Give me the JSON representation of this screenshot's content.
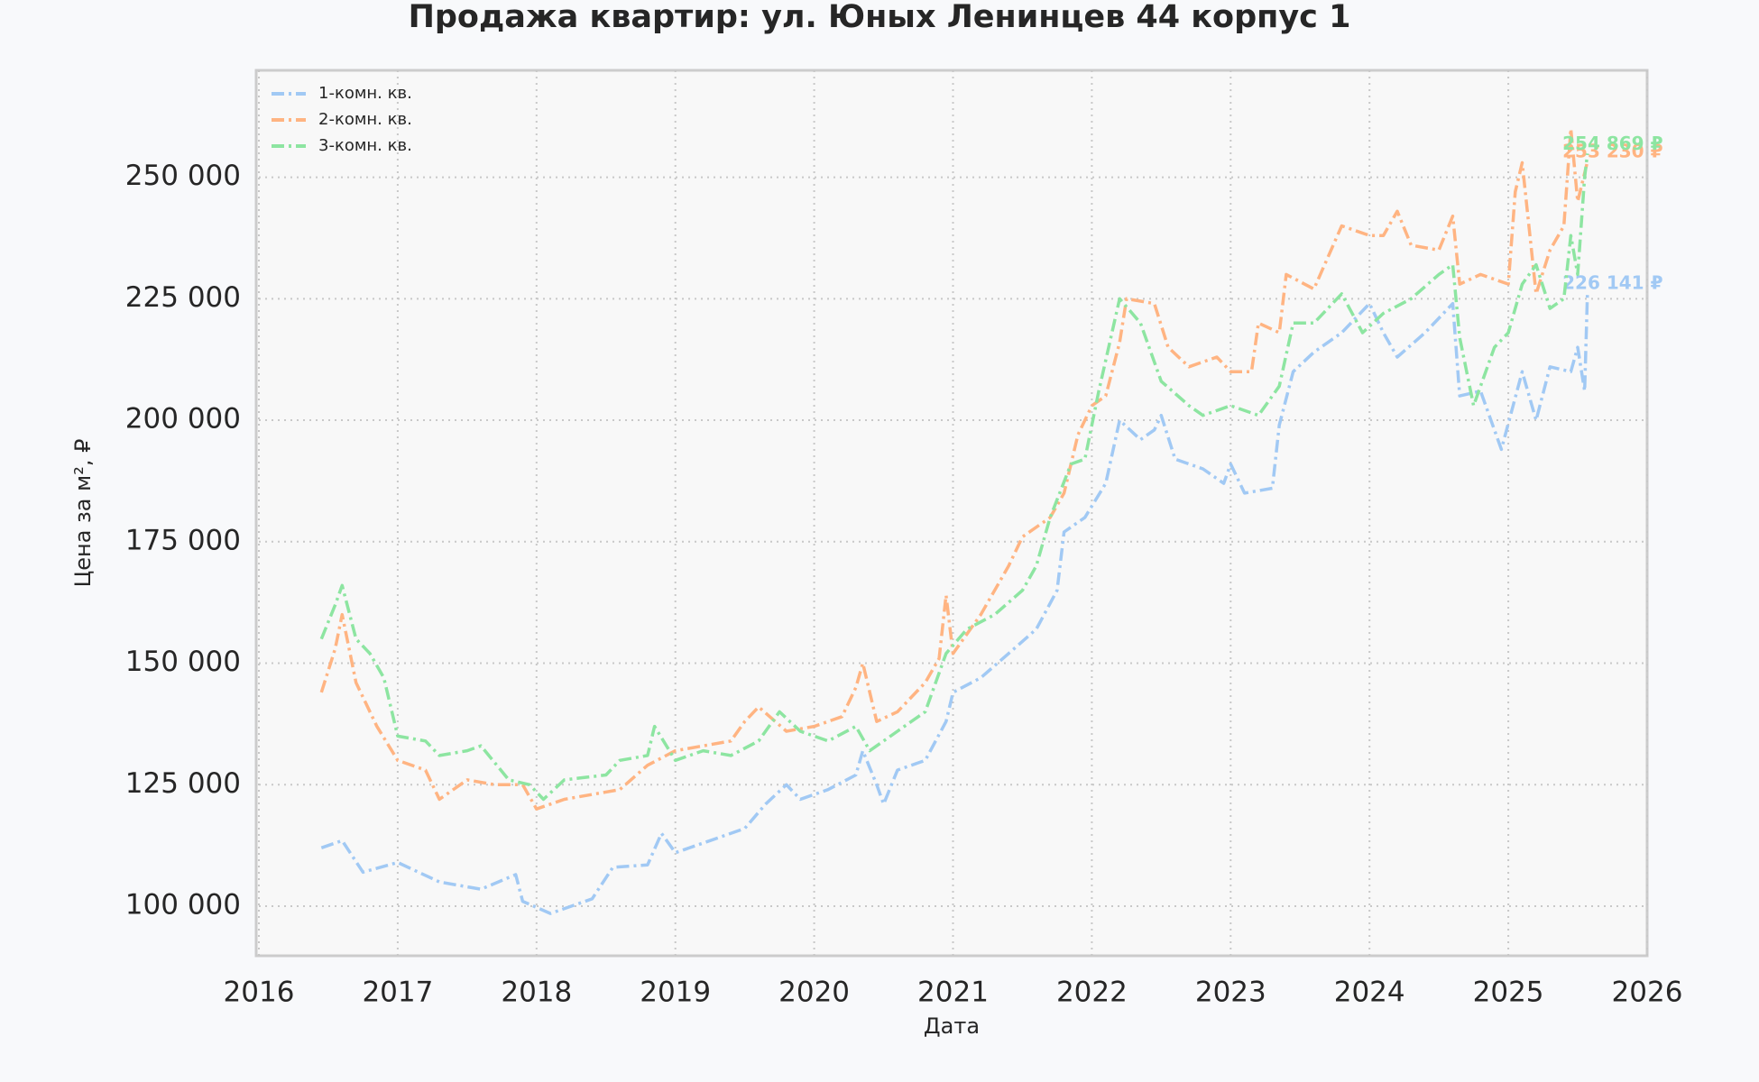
{
  "chart_data": {
    "type": "line",
    "title": "Продажа квартир: ул. Юных Ленинцев 44 корпус 1",
    "x_label": "Дата",
    "y_label": "Цена за м², ₽",
    "xlim": [
      2016,
      2026
    ],
    "xticks": [
      2016,
      2017,
      2018,
      2019,
      2020,
      2021,
      2022,
      2023,
      2024,
      2025,
      2026
    ],
    "ylim": [
      89800,
      272000
    ],
    "yticks": [
      {
        "value": 100000,
        "label": "100 000"
      },
      {
        "value": 125000,
        "label": "125 000"
      },
      {
        "value": 150000,
        "label": "150 000"
      },
      {
        "value": 175000,
        "label": "175 000"
      },
      {
        "value": 200000,
        "label": "200 000"
      },
      {
        "value": 225000,
        "label": "225 000"
      },
      {
        "value": 250000,
        "label": "250 000"
      }
    ],
    "grid": true,
    "legend": "upper left",
    "series": [
      {
        "name": "1-комн. кв.",
        "color": "#a1c9f4",
        "x": [
          2016.45,
          2016.6,
          2016.75,
          2017.0,
          2017.3,
          2017.6,
          2017.85,
          2017.9,
          2018.1,
          2018.4,
          2018.55,
          2018.8,
          2018.9,
          2019.0,
          2019.3,
          2019.5,
          2019.65,
          2019.8,
          2019.9,
          2020.1,
          2020.3,
          2020.35,
          2020.45,
          2020.5,
          2020.6,
          2020.8,
          2020.95,
          2021.0,
          2021.2,
          2021.4,
          2021.6,
          2021.75,
          2021.8,
          2021.95,
          2022.1,
          2022.2,
          2022.35,
          2022.45,
          2022.5,
          2022.6,
          2022.8,
          2022.95,
          2023.0,
          2023.1,
          2023.3,
          2023.35,
          2023.45,
          2023.6,
          2023.8,
          2024.0,
          2024.1,
          2024.2,
          2024.4,
          2024.6,
          2024.65,
          2024.8,
          2024.95,
          2025.1,
          2025.2,
          2025.3,
          2025.45,
          2025.5,
          2025.55,
          2025.57
        ],
        "values": [
          112000,
          113500,
          107000,
          109000,
          105000,
          103500,
          106500,
          101000,
          98500,
          101500,
          108000,
          108500,
          115000,
          111000,
          114000,
          116000,
          121000,
          125000,
          122000,
          124000,
          127000,
          132000,
          125000,
          121000,
          128000,
          130000,
          138000,
          144000,
          147000,
          152000,
          157000,
          165000,
          177000,
          180000,
          187000,
          200000,
          196000,
          198000,
          201000,
          192000,
          190000,
          187000,
          191000,
          185000,
          186000,
          199000,
          210000,
          214000,
          218000,
          224000,
          218000,
          213000,
          218000,
          224000,
          205000,
          206000,
          194000,
          210000,
          200000,
          211000,
          210000,
          215000,
          206000,
          226141
        ],
        "value_labels": [
          null,
          null,
          null,
          null,
          null,
          null,
          null,
          null,
          null,
          null,
          null,
          null,
          null,
          null,
          null,
          null,
          null,
          null,
          null,
          null,
          null,
          null,
          null,
          null,
          null,
          null,
          null,
          null,
          null,
          null,
          null,
          null,
          null,
          null,
          null,
          null,
          null,
          null,
          null,
          null,
          null,
          null,
          null,
          null,
          null,
          null,
          null,
          null,
          null,
          null,
          null,
          null,
          null,
          null,
          null,
          null,
          null,
          null,
          null,
          null,
          null,
          null,
          null,
          "226 141 ₽"
        ]
      },
      {
        "name": "2-комн. кв.",
        "color": "#ffb482",
        "x": [
          2016.45,
          2016.55,
          2016.6,
          2016.7,
          2016.85,
          2017.0,
          2017.2,
          2017.3,
          2017.5,
          2017.7,
          2017.9,
          2018.0,
          2018.2,
          2018.4,
          2018.6,
          2018.8,
          2019.0,
          2019.2,
          2019.4,
          2019.5,
          2019.6,
          2019.8,
          2020.0,
          2020.2,
          2020.3,
          2020.35,
          2020.45,
          2020.6,
          2020.8,
          2020.9,
          2020.95,
          2021.0,
          2021.2,
          2021.4,
          2021.5,
          2021.7,
          2021.8,
          2021.9,
          2022.0,
          2022.1,
          2022.2,
          2022.25,
          2022.45,
          2022.55,
          2022.7,
          2022.9,
          2023.0,
          2023.15,
          2023.2,
          2023.35,
          2023.4,
          2023.6,
          2023.8,
          2024.0,
          2024.1,
          2024.2,
          2024.3,
          2024.5,
          2024.6,
          2024.65,
          2024.8,
          2025.0,
          2025.05,
          2025.1,
          2025.2,
          2025.3,
          2025.4,
          2025.45,
          2025.5,
          2025.57
        ],
        "values": [
          144000,
          153000,
          160000,
          146000,
          137000,
          130000,
          128000,
          122000,
          126000,
          125000,
          125000,
          120000,
          122000,
          123000,
          124000,
          129000,
          132000,
          133000,
          134000,
          138000,
          141000,
          136000,
          137000,
          139000,
          145000,
          150000,
          138000,
          140000,
          146000,
          151000,
          164000,
          152000,
          160000,
          170000,
          176000,
          180000,
          185000,
          197000,
          203000,
          205000,
          216000,
          225000,
          224000,
          215000,
          211000,
          213000,
          210000,
          210000,
          220000,
          218000,
          230000,
          227000,
          240000,
          238000,
          238000,
          243000,
          236000,
          235000,
          242000,
          228000,
          230000,
          228000,
          247000,
          253000,
          226000,
          235000,
          240000,
          260000,
          245000,
          253230
        ],
        "value_labels": [
          null,
          null,
          null,
          null,
          null,
          null,
          null,
          null,
          null,
          null,
          null,
          null,
          null,
          null,
          null,
          null,
          null,
          null,
          null,
          null,
          null,
          null,
          null,
          null,
          null,
          null,
          null,
          null,
          null,
          null,
          null,
          null,
          null,
          null,
          null,
          null,
          null,
          null,
          null,
          null,
          null,
          null,
          null,
          null,
          null,
          null,
          null,
          null,
          null,
          null,
          null,
          null,
          null,
          null,
          null,
          null,
          null,
          null,
          null,
          null,
          null,
          null,
          null,
          null,
          null,
          null,
          null,
          null,
          null,
          "253 230 ₽"
        ]
      },
      {
        "name": "3-комн. кв.",
        "color": "#8de5a1",
        "x": [
          2016.45,
          2016.55,
          2016.6,
          2016.7,
          2016.8,
          2016.9,
          2017.0,
          2017.2,
          2017.3,
          2017.5,
          2017.6,
          2017.8,
          2017.95,
          2018.05,
          2018.2,
          2018.5,
          2018.6,
          2018.8,
          2018.85,
          2019.0,
          2019.2,
          2019.4,
          2019.6,
          2019.75,
          2019.9,
          2020.1,
          2020.3,
          2020.4,
          2020.6,
          2020.8,
          2020.95,
          2021.1,
          2021.3,
          2021.5,
          2021.6,
          2021.7,
          2021.85,
          2021.95,
          2022.05,
          2022.2,
          2022.35,
          2022.5,
          2022.7,
          2022.8,
          2023.0,
          2023.2,
          2023.35,
          2023.45,
          2023.6,
          2023.8,
          2023.95,
          2024.1,
          2024.3,
          2024.5,
          2024.6,
          2024.65,
          2024.75,
          2024.9,
          2025.0,
          2025.1,
          2025.2,
          2025.3,
          2025.4,
          2025.45,
          2025.5,
          2025.55,
          2025.57
        ],
        "values": [
          155000,
          162000,
          166000,
          155000,
          152000,
          147000,
          135000,
          134000,
          131000,
          132000,
          133000,
          126000,
          125000,
          122000,
          126000,
          127000,
          130000,
          131000,
          137000,
          130000,
          132000,
          131000,
          134000,
          140000,
          136000,
          134000,
          137000,
          132000,
          136000,
          140000,
          152000,
          157000,
          160000,
          165000,
          170000,
          180000,
          191000,
          192000,
          206000,
          225000,
          220000,
          208000,
          203000,
          201000,
          203000,
          201000,
          207000,
          220000,
          220000,
          226000,
          218000,
          222000,
          225000,
          230000,
          232000,
          217000,
          203000,
          215000,
          218000,
          228000,
          232000,
          223000,
          225000,
          238000,
          230000,
          250000,
          254869
        ],
        "value_labels": [
          null,
          null,
          null,
          null,
          null,
          null,
          null,
          null,
          null,
          null,
          null,
          null,
          null,
          null,
          null,
          null,
          null,
          null,
          null,
          null,
          null,
          null,
          null,
          null,
          null,
          null,
          null,
          null,
          null,
          null,
          null,
          null,
          null,
          null,
          null,
          null,
          null,
          null,
          null,
          null,
          null,
          null,
          null,
          null,
          null,
          null,
          null,
          null,
          null,
          null,
          null,
          null,
          null,
          null,
          null,
          null,
          null,
          null,
          null,
          null,
          null,
          null,
          null,
          null,
          null,
          null,
          "254 869 ₽"
        ]
      }
    ]
  }
}
